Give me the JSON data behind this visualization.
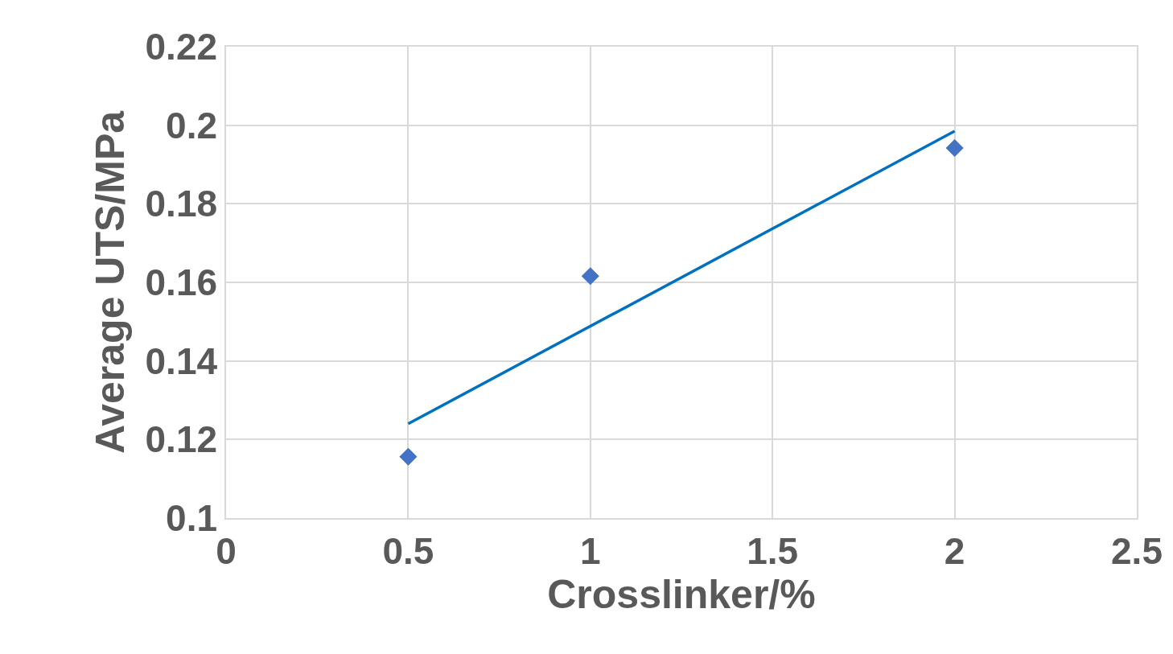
{
  "chart_data": {
    "type": "scatter",
    "xlabel": "Crosslinker/%",
    "ylabel": "Average UTS/MPa",
    "series": [
      {
        "type": "scatter",
        "color": "#4472c4",
        "marker": "diamond",
        "x": [
          0.5,
          1,
          2
        ],
        "values": [
          0.1156,
          0.1616,
          0.1942
        ]
      },
      {
        "type": "line",
        "color": "#0070c0",
        "marker": "none",
        "line_style": "solid",
        "x": [
          0.5,
          2
        ],
        "values": [
          0.124,
          0.1985
        ]
      }
    ],
    "xlim": [
      0,
      2.5
    ],
    "xticks": [
      0,
      0.5,
      1,
      1.5,
      2,
      2.5
    ],
    "ylim": [
      0.1,
      0.22
    ],
    "yticks": [
      0.1,
      0.12,
      0.14,
      0.16,
      0.18,
      0.2,
      0.22
    ],
    "grid": true
  }
}
